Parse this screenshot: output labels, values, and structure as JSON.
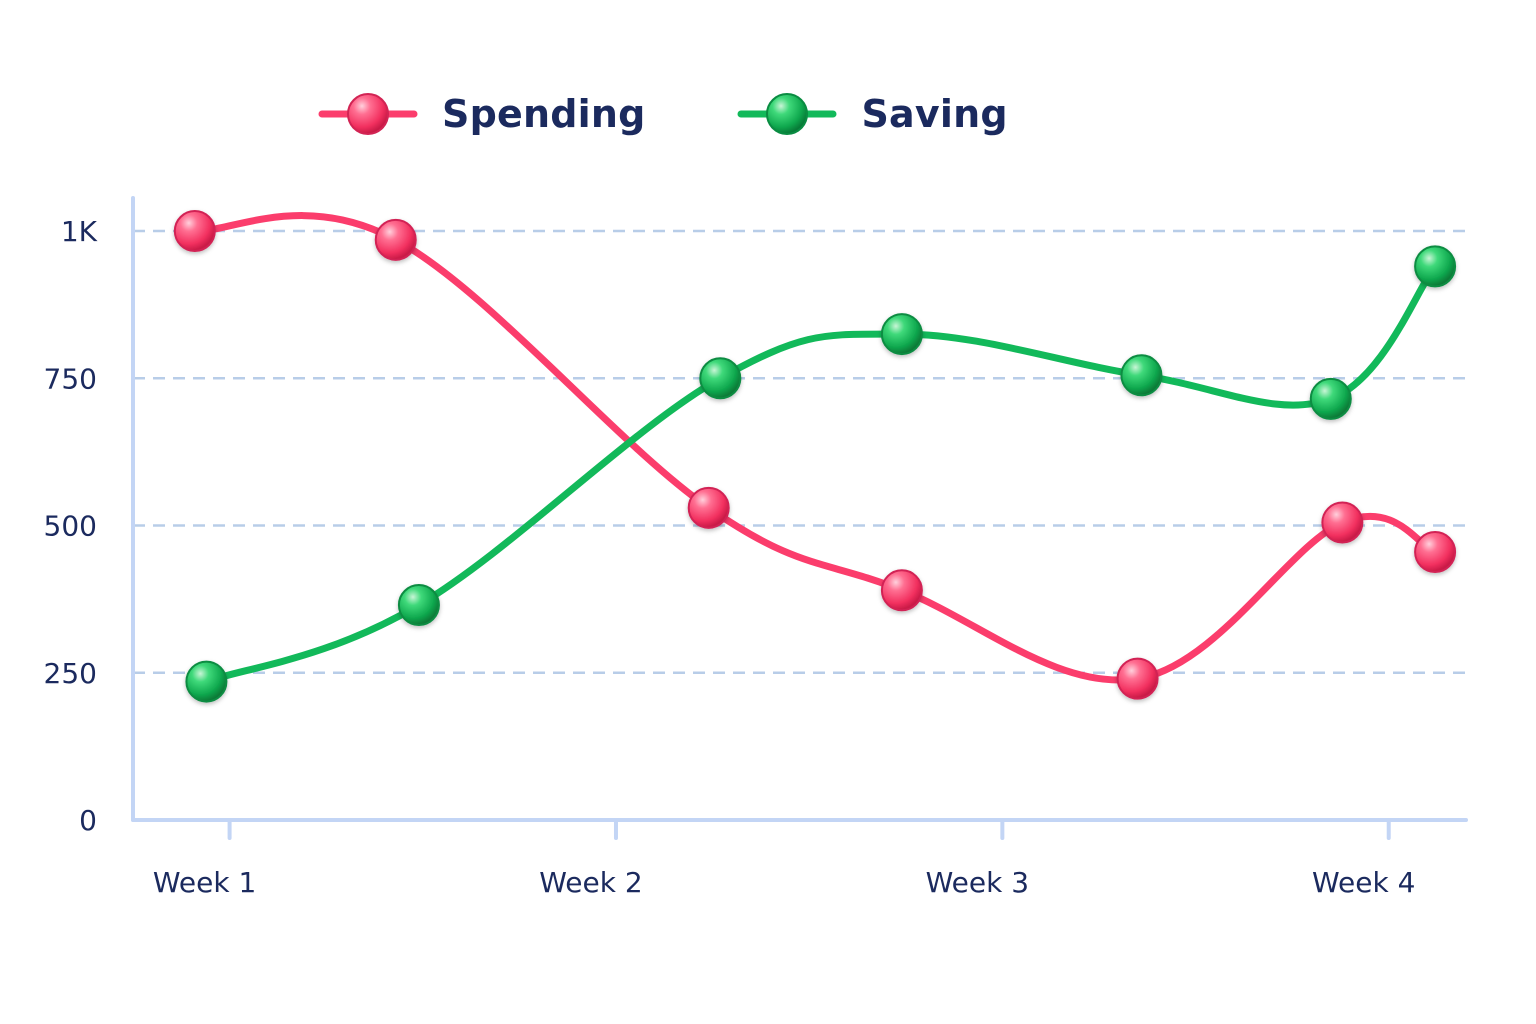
{
  "chart_data": {
    "type": "line",
    "categories": [
      "Week 1",
      "Week 2",
      "Week 3",
      "Week 4"
    ],
    "x_tick_labels": [
      "Week 1",
      "Week 2",
      "Week 3",
      "Week 4"
    ],
    "y_tick_labels": [
      "0",
      "250",
      "500",
      "750",
      "1K"
    ],
    "y_ticks": [
      0,
      250,
      500,
      750,
      1000
    ],
    "ylim": [
      0,
      1000
    ],
    "xlim": [
      0.75,
      4.2
    ],
    "grid": true,
    "legend_position": "top",
    "title": "",
    "xlabel": "",
    "ylabel": "",
    "series": [
      {
        "name": "Spending",
        "color": "#fb3d6c",
        "points": [
          {
            "x": 0.91,
            "y": 1000
          },
          {
            "x": 1.43,
            "y": 985
          },
          {
            "x": 2.24,
            "y": 530
          },
          {
            "x": 2.74,
            "y": 390
          },
          {
            "x": 3.35,
            "y": 240
          },
          {
            "x": 3.88,
            "y": 505
          },
          {
            "x": 4.12,
            "y": 455
          }
        ]
      },
      {
        "name": "Saving",
        "color": "#12b95a",
        "points": [
          {
            "x": 0.94,
            "y": 235
          },
          {
            "x": 1.49,
            "y": 365
          },
          {
            "x": 2.27,
            "y": 750
          },
          {
            "x": 2.74,
            "y": 825
          },
          {
            "x": 3.36,
            "y": 755
          },
          {
            "x": 3.85,
            "y": 715
          },
          {
            "x": 4.12,
            "y": 940
          }
        ]
      }
    ]
  },
  "legend": {
    "items": [
      {
        "label": "Spending",
        "color": "#fb3d6c"
      },
      {
        "label": "Saving",
        "color": "#12b95a"
      }
    ]
  },
  "colors": {
    "axis": "#c3d5f5",
    "grid": "#b8cde8",
    "text": "#1b2a5e"
  }
}
